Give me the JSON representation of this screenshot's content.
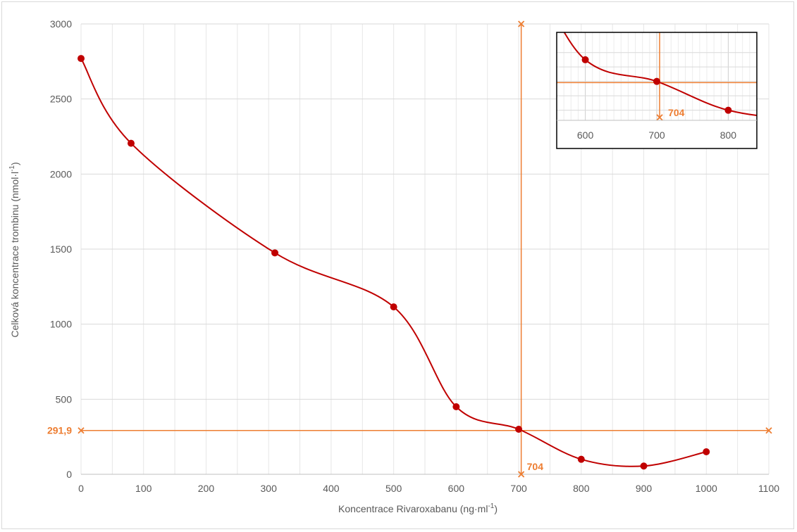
{
  "chart_data": {
    "type": "scatter",
    "xlabel": "Koncentrace Rivaroxabanu (ng·ml",
    "xlabel_sup": "-1",
    "xlabel_end": ")",
    "ylabel": "Celková koncentrace trombinu (nmol·l",
    "ylabel_sup": "-1",
    "ylabel_end": ")",
    "xlim": [
      0,
      1100
    ],
    "ylim": [
      0,
      3000
    ],
    "x_ticks": [
      0,
      100,
      200,
      300,
      400,
      500,
      600,
      700,
      800,
      900,
      1000,
      1100
    ],
    "y_ticks": [
      0,
      500,
      1000,
      1500,
      2000,
      2500,
      3000
    ],
    "x_minor_step": 50,
    "grid": true,
    "series": [
      {
        "color": "#c00000",
        "smoothed": true,
        "points": [
          {
            "x": 0,
            "y": 2770
          },
          {
            "x": 80,
            "y": 2205
          },
          {
            "x": 310,
            "y": 1475
          },
          {
            "x": 500,
            "y": 1115
          },
          {
            "x": 600,
            "y": 450
          },
          {
            "x": 700,
            "y": 300
          },
          {
            "x": 800,
            "y": 100
          },
          {
            "x": 900,
            "y": 55
          },
          {
            "x": 1000,
            "y": 150
          }
        ]
      }
    ],
    "reference_lines": {
      "color": "#ed7d31",
      "horizontal": {
        "y": 291.9,
        "label": "291,9"
      },
      "vertical": {
        "x": 704,
        "label": "704"
      }
    },
    "inset": {
      "xlim": [
        560,
        840
      ],
      "x_ticks": [
        600,
        700,
        800
      ],
      "x_minor_step": 10,
      "y_ticks": [
        100,
        200,
        300,
        400,
        500
      ],
      "ylim": [
        30,
        640
      ],
      "marker_y": 50,
      "label": "704"
    }
  }
}
